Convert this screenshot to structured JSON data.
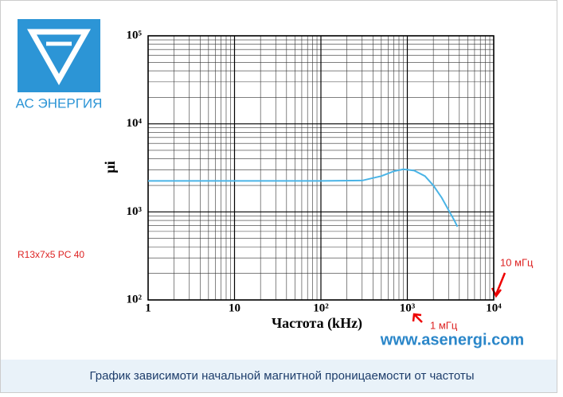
{
  "logo": {
    "text": "АС ЭНЕРГИЯ"
  },
  "website": "www.asenergi.com",
  "caption": "График зависимоти начальной магнитной проницаемости от частоты",
  "chart_data": {
    "type": "line",
    "x_label": "Частота (kHz)",
    "y_label": "µi",
    "annotations": [
      "R13x7x5 PC 40",
      "10 мГц",
      "1 мГц"
    ],
    "x": [
      1,
      10,
      100,
      300,
      500,
      700,
      900,
      1200,
      1600,
      2000,
      2500,
      3000,
      3500,
      3800
    ],
    "values": [
      2250,
      2250,
      2250,
      2270,
      2550,
      2900,
      3050,
      2950,
      2550,
      2000,
      1450,
      1050,
      800,
      680
    ],
    "color": "#4ab4e6",
    "xlim": [
      1,
      10000
    ],
    "ylim": [
      100,
      100000
    ],
    "xticks": [
      1,
      10,
      {
        "value": 100,
        "label": "10²"
      },
      {
        "value": 1000,
        "label": "10³"
      },
      {
        "value": 10000,
        "label": "10⁴"
      }
    ],
    "yticks": [
      {
        "value": 100,
        "label": "10²"
      },
      {
        "value": 1000,
        "label": "10³"
      },
      {
        "value": 10000,
        "label": "10⁴"
      },
      {
        "value": 100000,
        "label": "10⁵"
      }
    ],
    "log_x": true,
    "log_y": true,
    "grid": true,
    "minor_grid": true
  }
}
